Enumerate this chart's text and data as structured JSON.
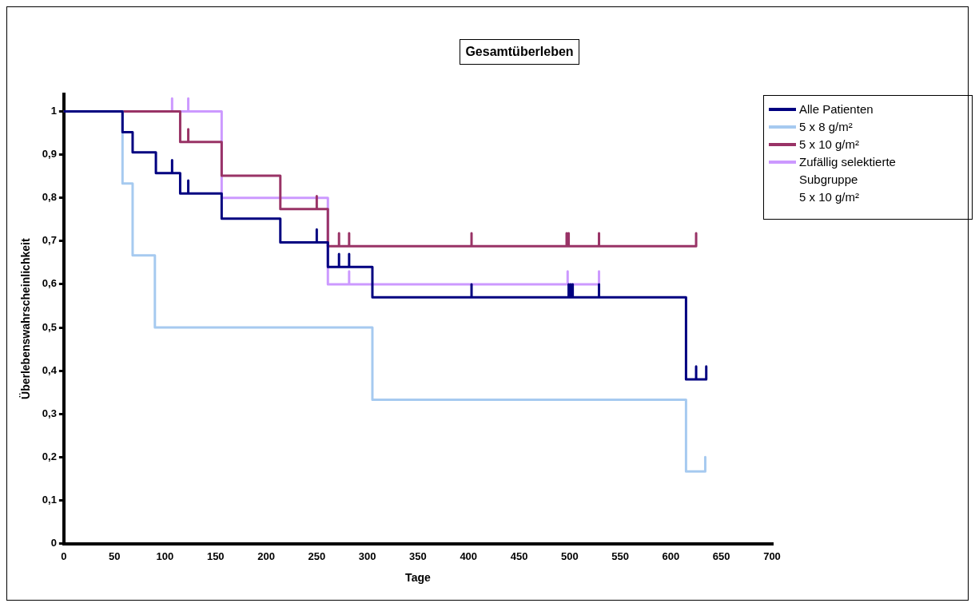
{
  "chart_data": {
    "type": "step",
    "title": "Gesamtüberleben",
    "xlabel": "Tage",
    "ylabel": "Überlebenswahrscheinlichkeit",
    "xlim": [
      0,
      700
    ],
    "xticks": [
      0,
      50,
      100,
      150,
      200,
      250,
      300,
      350,
      400,
      450,
      500,
      550,
      600,
      650,
      700
    ],
    "ylim": [
      0,
      1.04
    ],
    "yticks": [
      0,
      {
        "value": 0.1,
        "label": "0,1"
      },
      {
        "value": 0.2,
        "label": "0,2"
      },
      {
        "value": 0.3,
        "label": "0,3"
      },
      {
        "value": 0.4,
        "label": "0,4"
      },
      {
        "value": 0.5,
        "label": "0,5"
      },
      {
        "value": 0.6,
        "label": "0,6"
      },
      {
        "value": 0.7,
        "label": "0,7"
      },
      {
        "value": 0.8,
        "label": "0,8"
      },
      {
        "value": 0.9,
        "label": "0,9"
      },
      1
    ],
    "grid": false,
    "legend": "right",
    "marker": "none",
    "line_style": "solid",
    "series": [
      {
        "name": "Alle Patienten",
        "color": "#000080",
        "x": [
          0,
          58,
          68,
          91,
          107,
          107,
          115,
          123,
          123,
          156,
          214,
          250,
          250,
          261,
          272,
          272,
          282,
          282,
          305,
          403,
          403,
          499,
          499,
          501,
          501,
          503,
          503,
          529,
          529,
          615,
          625,
          625,
          635,
          635
        ],
        "values": [
          1,
          0.952,
          0.905,
          0.857,
          0.887,
          0.857,
          0.81,
          0.84,
          0.81,
          0.752,
          0.697,
          0.727,
          0.697,
          0.64,
          0.67,
          0.64,
          0.67,
          0.64,
          0.57,
          0.6,
          0.57,
          0.6,
          0.57,
          0.6,
          0.57,
          0.6,
          0.57,
          0.6,
          0.57,
          0.38,
          0.41,
          0.38,
          0.41,
          0.38
        ]
      },
      {
        "name": "5 x 8 g/m²",
        "color": "#a6caf0",
        "x": [
          0,
          58,
          68,
          90,
          305,
          615,
          634
        ],
        "values": [
          1,
          0.833,
          0.667,
          0.5,
          0.333,
          0.167,
          0.2
        ]
      },
      {
        "name": "5 x 10 g/m²",
        "color": "#993366",
        "x": [
          0,
          115,
          123,
          123,
          156,
          214,
          250,
          250,
          261,
          272,
          272,
          282,
          282,
          403,
          403,
          497,
          497,
          499,
          499,
          529,
          529,
          625
        ],
        "values": [
          1,
          0.929,
          0.959,
          0.929,
          0.851,
          0.774,
          0.804,
          0.774,
          0.688,
          0.718,
          0.688,
          0.718,
          0.688,
          0.718,
          0.688,
          0.718,
          0.688,
          0.718,
          0.688,
          0.718,
          0.688,
          0.718
        ]
      },
      {
        "name": "Zufällig selektierte\nSubgruppe\n5 x 10 g/m²",
        "color": "#cc99ff",
        "x": [
          0,
          107,
          107,
          123,
          123,
          156,
          261,
          282,
          282,
          498,
          498,
          529
        ],
        "values": [
          1,
          1.03,
          1,
          1.03,
          1,
          0.8,
          0.6,
          0.63,
          0.6,
          0.63,
          0.6,
          0.63
        ]
      }
    ]
  }
}
